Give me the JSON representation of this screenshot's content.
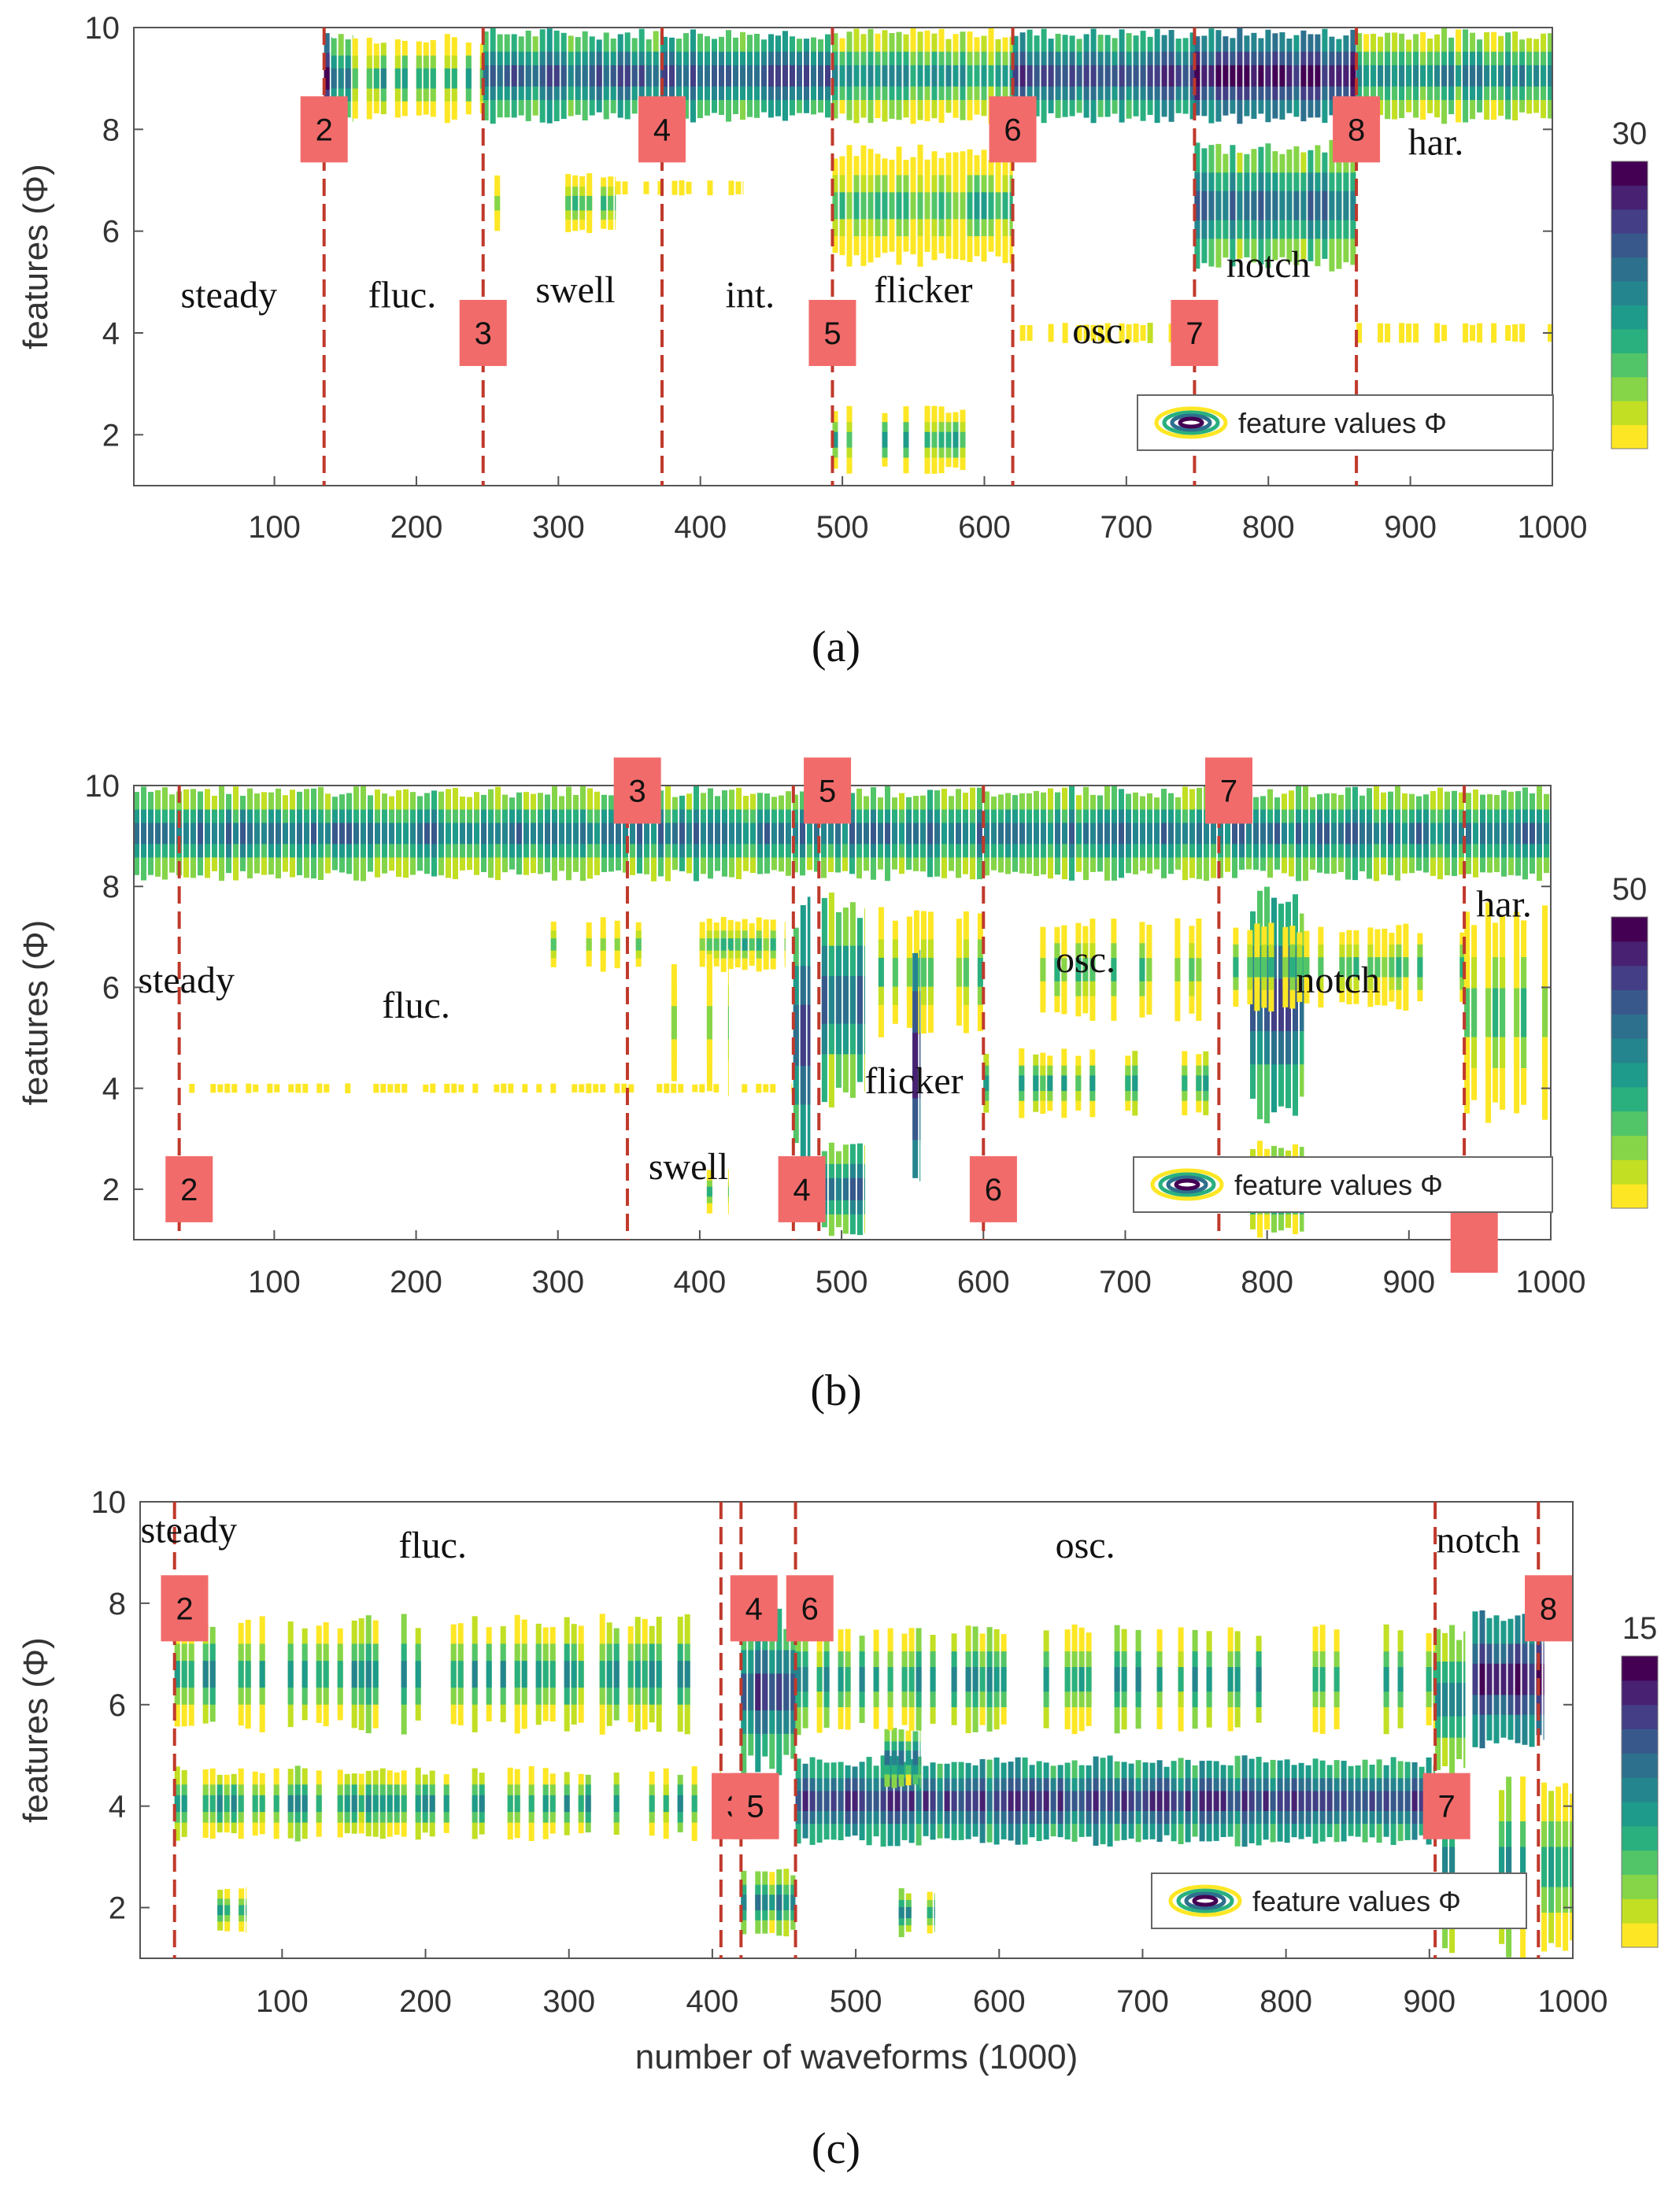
{
  "chart_data": [
    {
      "type": "heatmap",
      "panel": "(a)",
      "caption": "(a)",
      "xlabel": "",
      "ylabel": "features (Φ)",
      "xlim": [
        1,
        1000
      ],
      "ylim": [
        1,
        10
      ],
      "xticks": [
        100,
        200,
        300,
        400,
        500,
        600,
        700,
        800,
        900,
        1000
      ],
      "yticks": [
        2,
        4,
        6,
        8,
        10
      ],
      "colorbar_max": "30",
      "colorbar_max_value": 30,
      "legend_label": "feature values Φ",
      "legend_position": "bottom-right",
      "boundaries": [
        135,
        247,
        373,
        493,
        620,
        748,
        862
      ],
      "markers": [
        {
          "label": "2",
          "x": 135,
          "y": 8.0
        },
        {
          "label": "3",
          "x": 247,
          "y": 4.0
        },
        {
          "label": "4",
          "x": 373,
          "y": 8.0
        },
        {
          "label": "5",
          "x": 493,
          "y": 4.0
        },
        {
          "label": "6",
          "x": 620,
          "y": 8.0
        },
        {
          "label": "7",
          "x": 748,
          "y": 4.0
        },
        {
          "label": "8",
          "x": 862,
          "y": 8.0
        }
      ],
      "regions": [
        {
          "label": "steady",
          "x": 68,
          "y": 4.5
        },
        {
          "label": "fluc.",
          "x": 190,
          "y": 4.5
        },
        {
          "label": "swell",
          "x": 312,
          "y": 4.6
        },
        {
          "label": "int.",
          "x": 435,
          "y": 4.5
        },
        {
          "label": "flicker",
          "x": 557,
          "y": 4.6
        },
        {
          "label": "osc.",
          "x": 683,
          "y": 3.8
        },
        {
          "label": "notch",
          "x": 800,
          "y": 5.1
        },
        {
          "label": "har.",
          "x": 918,
          "y": 7.5
        }
      ],
      "blocks": [
        {
          "x": [
            135,
            140
          ],
          "y": [
            8,
            10
          ],
          "level": 0.8
        },
        {
          "x": [
            140,
            155
          ],
          "y": [
            8.1,
            9.9
          ],
          "level": 0.45
        },
        {
          "x": [
            155,
            247
          ],
          "y": [
            8.1,
            9.9
          ],
          "level": 0.2,
          "sparse": true
        },
        {
          "x": [
            247,
            373
          ],
          "y": [
            8.1,
            10
          ],
          "level": 0.5
        },
        {
          "x": [
            373,
            493
          ],
          "y": [
            8.1,
            10
          ],
          "level": 0.55
        },
        {
          "x": [
            493,
            620
          ],
          "y": [
            8.1,
            10
          ],
          "level": 0.25
        },
        {
          "x": [
            620,
            748
          ],
          "y": [
            8.1,
            10
          ],
          "level": 0.6
        },
        {
          "x": [
            748,
            862
          ],
          "y": [
            8.1,
            10
          ],
          "level": 0.75
        },
        {
          "x": [
            862,
            1000
          ],
          "y": [
            8.1,
            10
          ],
          "level": 0.35
        },
        {
          "x": [
            255,
            340
          ],
          "y": [
            5.9,
            7.2
          ],
          "level": 0.1,
          "sparse": true
        },
        {
          "x": [
            340,
            430
          ],
          "y": [
            6.7,
            7.0
          ],
          "level": 0.08,
          "sparse": true
        },
        {
          "x": [
            493,
            620
          ],
          "y": [
            5.3,
            7.7
          ],
          "level": 0.12
        },
        {
          "x": [
            493,
            620
          ],
          "y": [
            1.2,
            2.6
          ],
          "level": 0.12,
          "sparse": true
        },
        {
          "x": [
            620,
            740
          ],
          "y": [
            3.8,
            4.2
          ],
          "level": 0.15,
          "sparse": true
        },
        {
          "x": [
            748,
            862
          ],
          "y": [
            5.2,
            7.8
          ],
          "level": 0.45
        },
        {
          "x": [
            862,
            1000
          ],
          "y": [
            3.8,
            4.2
          ],
          "level": 0.1,
          "sparse": true
        }
      ]
    },
    {
      "type": "heatmap",
      "panel": "(b)",
      "caption": "(b)",
      "xlabel": "",
      "ylabel": "features (Φ)",
      "xlim": [
        1,
        1000
      ],
      "ylim": [
        1,
        10
      ],
      "xticks": [
        100,
        200,
        300,
        400,
        500,
        600,
        700,
        800,
        900,
        1000
      ],
      "yticks": [
        2,
        4,
        6,
        8,
        10
      ],
      "colorbar_max": "50",
      "colorbar_max_value": 50,
      "legend_label": "feature values Φ",
      "legend_position": "bottom-right",
      "boundaries": [
        33,
        349,
        466,
        484,
        600,
        766,
        939
      ],
      "markers": [
        {
          "label": "2",
          "x": 40,
          "y": 2.0
        },
        {
          "label": "3",
          "x": 356,
          "y": 9.9
        },
        {
          "label": "4",
          "x": 472,
          "y": 2.0
        },
        {
          "label": "5",
          "x": 490,
          "y": 9.9
        },
        {
          "label": "6",
          "x": 607,
          "y": 2.0
        },
        {
          "label": "7",
          "x": 773,
          "y": 9.9
        },
        {
          "label": "",
          "x": 946,
          "y": 1.0
        }
      ],
      "regions": [
        {
          "label": "steady",
          "x": 38,
          "y": 5.9
        },
        {
          "label": "fluc.",
          "x": 200,
          "y": 5.4
        },
        {
          "label": "swell",
          "x": 392,
          "y": 2.2
        },
        {
          "label": "flicker",
          "x": 551,
          "y": 3.9
        },
        {
          "label": "osc.",
          "x": 672,
          "y": 6.3
        },
        {
          "label": "notch",
          "x": 850,
          "y": 5.9
        },
        {
          "label": "har.",
          "x": 967,
          "y": 7.4
        }
      ],
      "blocks": [
        {
          "x": [
            1,
            1000
          ],
          "y": [
            8.1,
            10
          ],
          "level": 0.4
        },
        {
          "x": [
            280,
            460
          ],
          "y": [
            6.3,
            7.4
          ],
          "level": 0.1,
          "sparse": true
        },
        {
          "x": [
            380,
            420
          ],
          "y": [
            3.8,
            6.8
          ],
          "level": 0.1,
          "sparse": true
        },
        {
          "x": [
            40,
            465
          ],
          "y": [
            3.9,
            4.1
          ],
          "level": 0.08,
          "sparse": true
        },
        {
          "x": [
            400,
            420
          ],
          "y": [
            1.5,
            2.4
          ],
          "level": 0.1,
          "sparse": true
        },
        {
          "x": [
            466,
            478
          ],
          "y": [
            2.3,
            7.8
          ],
          "level": 0.55
        },
        {
          "x": [
            486,
            516
          ],
          "y": [
            3.6,
            7.9
          ],
          "level": 0.45
        },
        {
          "x": [
            486,
            516
          ],
          "y": [
            1.0,
            3.0
          ],
          "level": 0.45
        },
        {
          "x": [
            516,
            600
          ],
          "y": [
            5.0,
            7.6
          ],
          "level": 0.1,
          "sparse": true
        },
        {
          "x": [
            550,
            555
          ],
          "y": [
            1.5,
            7.4
          ],
          "level": 0.6
        },
        {
          "x": [
            600,
            766
          ],
          "y": [
            3.4,
            4.8
          ],
          "level": 0.18,
          "sparse": true
        },
        {
          "x": [
            640,
            766
          ],
          "y": [
            5.3,
            7.4
          ],
          "level": 0.08,
          "sparse": true
        },
        {
          "x": [
            788,
            826
          ],
          "y": [
            3.3,
            8.0
          ],
          "level": 0.5
        },
        {
          "x": [
            788,
            826
          ],
          "y": [
            1.0,
            3.0
          ],
          "level": 0.3
        },
        {
          "x": [
            766,
            939
          ],
          "y": [
            5.5,
            7.3
          ],
          "level": 0.08,
          "sparse": true
        },
        {
          "x": [
            939,
            1000
          ],
          "y": [
            3.3,
            7.7
          ],
          "level": 0.1,
          "sparse": true
        }
      ]
    },
    {
      "type": "heatmap",
      "panel": "(c)",
      "caption": "(c)",
      "xlabel": "number of waveforms (1000)",
      "ylabel": "features (Φ)",
      "xlim": [
        1,
        1000
      ],
      "ylim": [
        1,
        10
      ],
      "xticks": [
        100,
        200,
        300,
        400,
        500,
        600,
        700,
        800,
        900,
        1000
      ],
      "yticks": [
        2,
        4,
        6,
        8,
        10
      ],
      "colorbar_max": "15",
      "colorbar_max_value": 15,
      "legend_label": "feature values Φ",
      "legend_position": "bottom-right",
      "boundaries": [
        25,
        406,
        420,
        458,
        904,
        976
      ],
      "markers": [
        {
          "label": "2",
          "x": 32,
          "y": 7.9
        },
        {
          "label": "3",
          "x": 416,
          "y": 4.0
        },
        {
          "label": "5",
          "x": 430,
          "y": 4.0
        },
        {
          "label": "4",
          "x": 429,
          "y": 7.9
        },
        {
          "label": "6",
          "x": 468,
          "y": 7.9
        },
        {
          "label": "7",
          "x": 912,
          "y": 4.0
        },
        {
          "label": "8",
          "x": 983,
          "y": 7.9
        }
      ],
      "regions": [
        {
          "label": "steady",
          "x": 35,
          "y": 9.2
        },
        {
          "label": "fluc.",
          "x": 205,
          "y": 8.9
        },
        {
          "label": "osc.",
          "x": 660,
          "y": 8.9
        },
        {
          "label": "notch",
          "x": 934,
          "y": 9.0
        }
      ],
      "blocks": [
        {
          "x": [
            25,
            406
          ],
          "y": [
            5.4,
            7.8
          ],
          "level": 0.25,
          "sparse": true
        },
        {
          "x": [
            25,
            406
          ],
          "y": [
            3.3,
            4.8
          ],
          "level": 0.25,
          "sparse": true
        },
        {
          "x": [
            45,
            75
          ],
          "y": [
            1.5,
            2.4
          ],
          "level": 0.25,
          "sparse": true
        },
        {
          "x": [
            420,
            458
          ],
          "y": [
            4.6,
            7.9
          ],
          "level": 0.55
        },
        {
          "x": [
            420,
            458
          ],
          "y": [
            1.4,
            2.8
          ],
          "level": 0.3,
          "sparse": true
        },
        {
          "x": [
            458,
            904
          ],
          "y": [
            3.2,
            5.0
          ],
          "level": 0.6
        },
        {
          "x": [
            520,
            545
          ],
          "y": [
            4.3,
            5.6
          ],
          "level": 0.35
        },
        {
          "x": [
            530,
            555
          ],
          "y": [
            1.4,
            2.4
          ],
          "level": 0.3,
          "sparse": true
        },
        {
          "x": [
            458,
            904
          ],
          "y": [
            5.4,
            7.6
          ],
          "level": 0.25,
          "sparse": true
        },
        {
          "x": [
            904,
            925
          ],
          "y": [
            4.6,
            7.6
          ],
          "level": 0.3
        },
        {
          "x": [
            930,
            980
          ],
          "y": [
            5.1,
            7.9
          ],
          "level": 0.75
        },
        {
          "x": [
            904,
            1000
          ],
          "y": [
            1.0,
            4.6
          ],
          "level": 0.25,
          "sparse": true
        }
      ]
    }
  ],
  "palette": {
    "colormap": [
      "#fde725",
      "#c2df23",
      "#86d549",
      "#52c569",
      "#2ab07f",
      "#1e9b8a",
      "#25858e",
      "#2d708e",
      "#38588c",
      "#433e85",
      "#482173",
      "#440154"
    ],
    "boundary": "#c0392b",
    "marker_fill": "#f26b6b",
    "axis": "#555555"
  }
}
